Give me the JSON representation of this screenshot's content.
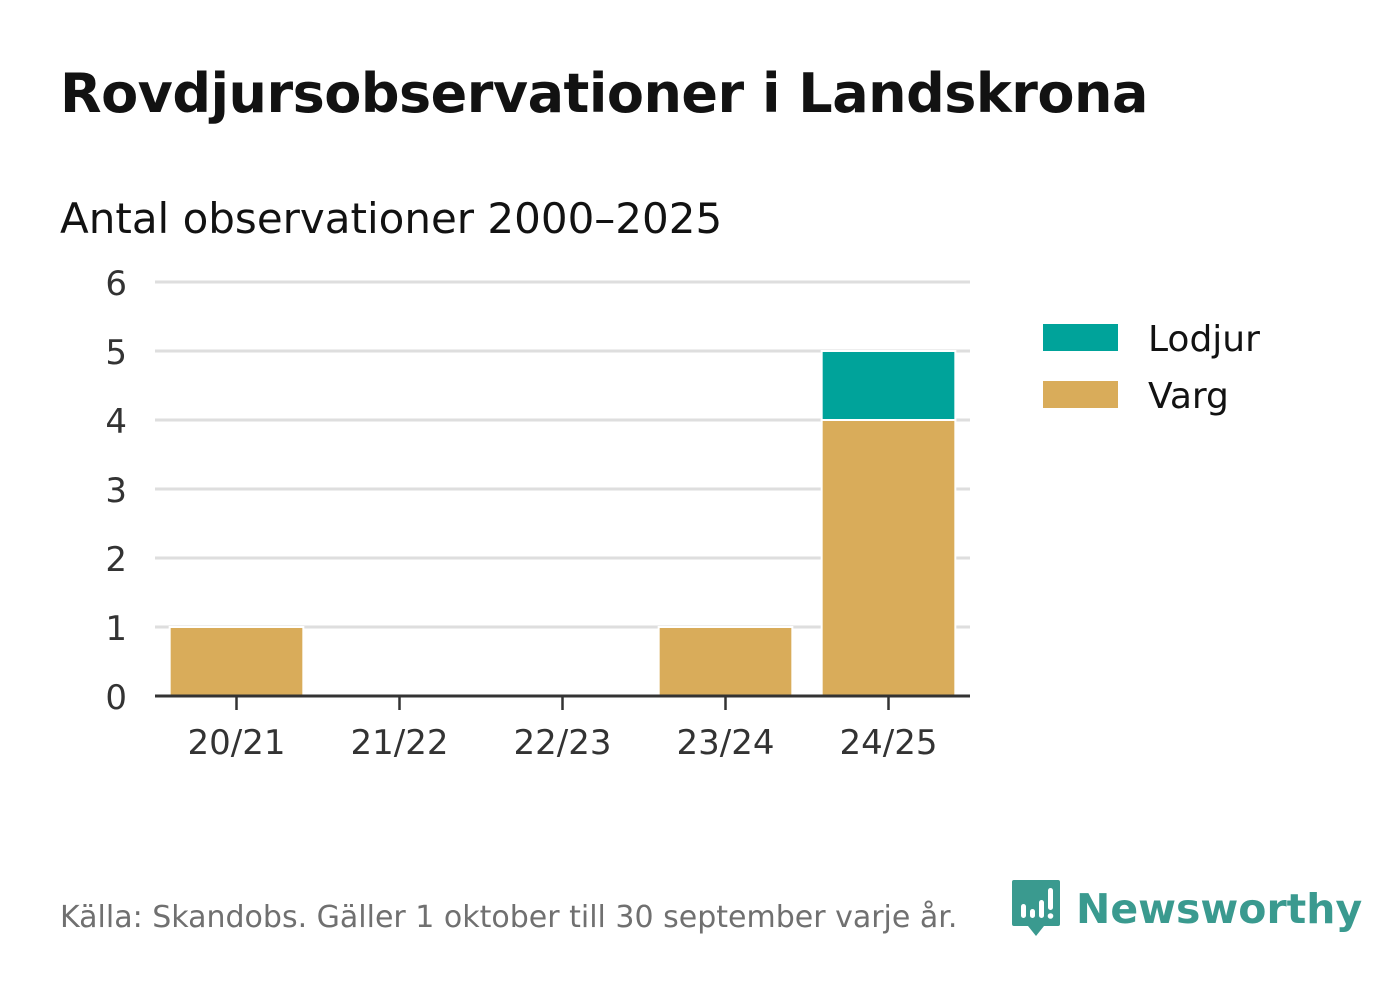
{
  "title": "Rovdjursobservationer i Landskrona",
  "subtitle": "Antal observationer 2000–2025",
  "source": "Källa: Skandobs. Gäller 1 oktober till 30 september varje år.",
  "brand": {
    "name": "Newsworthy",
    "icon": "newsworthy-chart-icon",
    "color": "#3a9a8f"
  },
  "chart_data": {
    "type": "bar",
    "stacked": true,
    "categories": [
      "20/21",
      "21/22",
      "22/23",
      "23/24",
      "24/25"
    ],
    "series": [
      {
        "name": "Varg",
        "values": [
          1,
          0,
          0,
          1,
          4
        ],
        "color": "#d9ac5a"
      },
      {
        "name": "Lodjur",
        "values": [
          0,
          0,
          0,
          0,
          1
        ],
        "color": "#00a39a"
      }
    ],
    "legend_order": [
      "Lodjur",
      "Varg"
    ],
    "legend_position": "right",
    "ylim": [
      0,
      6
    ],
    "yticks": [
      0,
      1,
      2,
      3,
      4,
      5,
      6
    ],
    "grid": true,
    "xlabel": "",
    "ylabel": ""
  }
}
